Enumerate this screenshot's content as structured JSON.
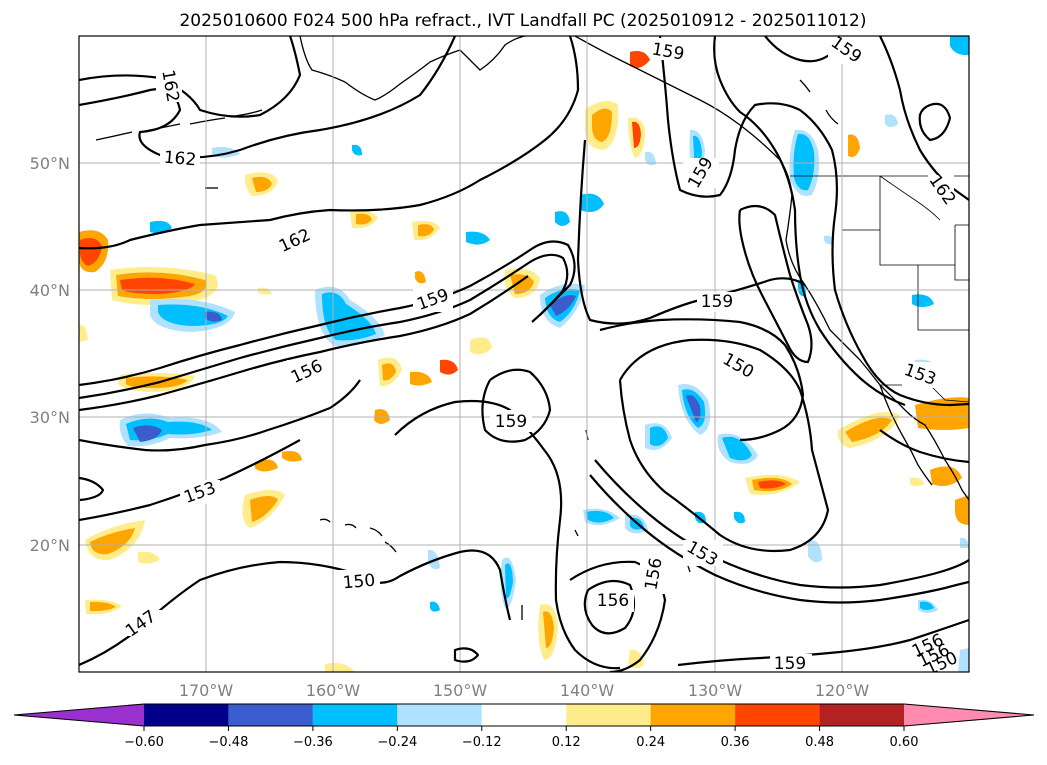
{
  "title": "2025010600 F024 500 hPa refract., IVT Landfall PC (2025010912 - 2025011012)",
  "map": {
    "projection": "cylindrical",
    "longitude_range": [
      -180,
      -110
    ],
    "latitude_range": [
      10,
      60
    ],
    "longitude_ticks": [
      "170°W",
      "160°W",
      "150°W",
      "140°W",
      "130°W",
      "120°W"
    ],
    "latitude_ticks": [
      "50°N",
      "40°N",
      "30°N",
      "20°N"
    ],
    "gridlines": true,
    "contour_variable": "500 hPa refractivity",
    "shaded_variable": "IVT Landfall PC",
    "contour_labels": [
      "162",
      "162",
      "162",
      "162",
      "159",
      "159",
      "159",
      "159",
      "159",
      "159",
      "159",
      "156",
      "156",
      "156",
      "156",
      "156",
      "153",
      "153",
      "153",
      "150",
      "150",
      "150",
      "147"
    ]
  },
  "colorbar": {
    "orientation": "horizontal",
    "extend": "both",
    "ticks": [
      "−0.60",
      "−0.48",
      "−0.36",
      "−0.24",
      "−0.12",
      "0.12",
      "0.24",
      "0.36",
      "0.48",
      "0.60"
    ],
    "colors": [
      "#9a30cd",
      "#00008b",
      "#3a5ccc",
      "#00bfff",
      "#b0e2ff",
      "#ffffff",
      "#ffec8b",
      "#ffa500",
      "#ff4500",
      "#b22222",
      "#ff8cb0"
    ]
  }
}
